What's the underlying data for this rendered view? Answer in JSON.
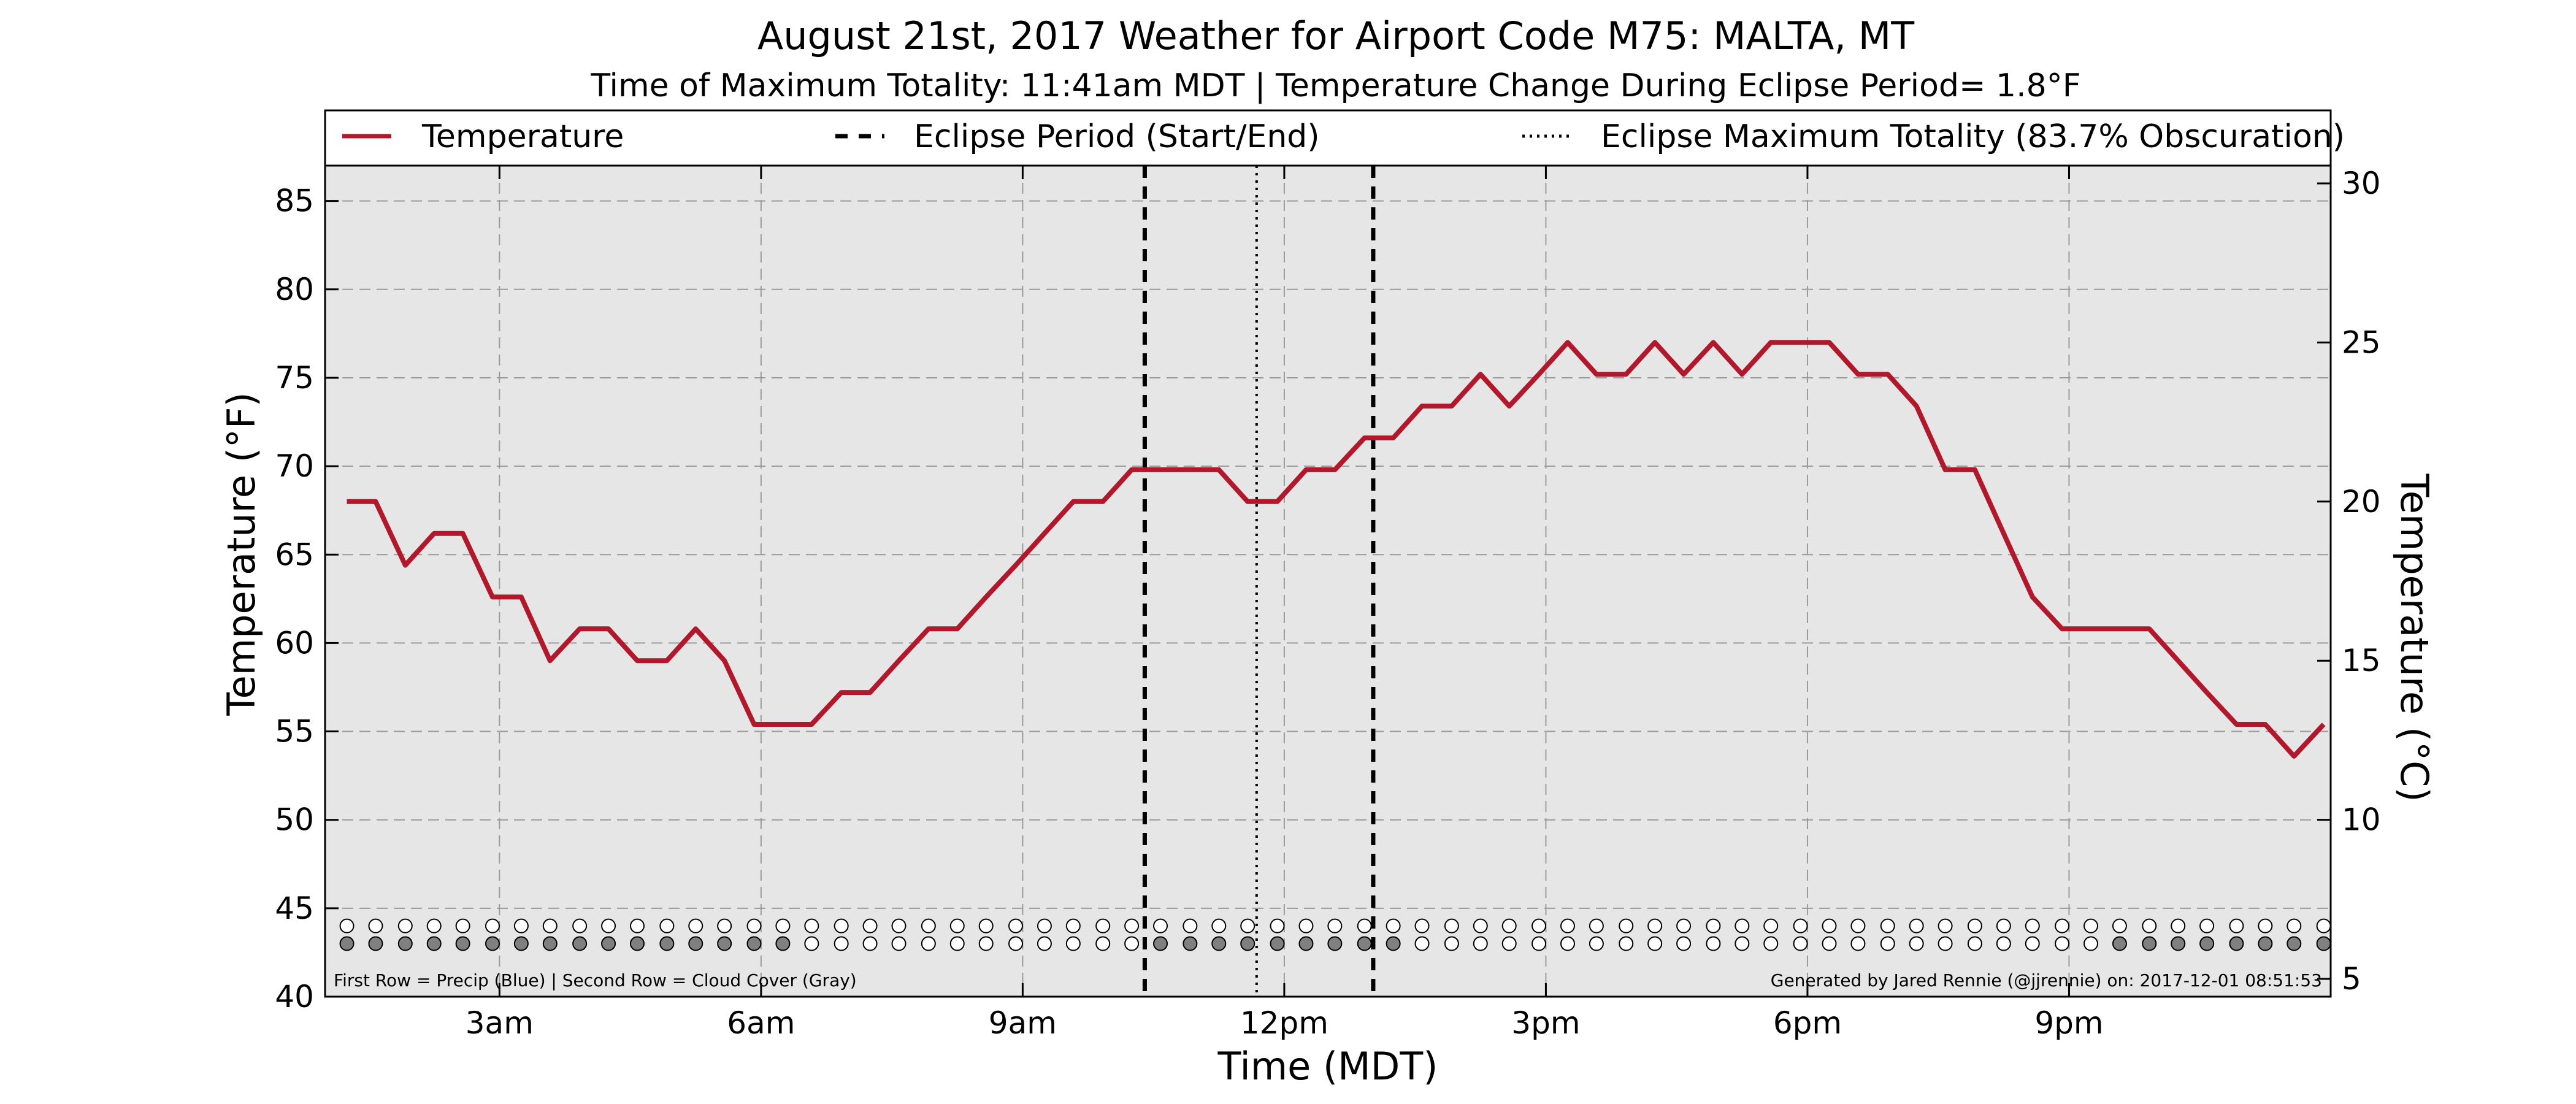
{
  "chart_data": {
    "type": "line",
    "title": "August 21st, 2017 Weather for Airport Code M75: MALTA, MT",
    "subtitle": "Time of Maximum Totality: 11:41am MDT | Temperature Change During Eclipse Period= 1.8°F",
    "xlabel": "Time (MDT)",
    "ylabel": "Temperature (°F)",
    "ylabel_right": "Temperature (°C)",
    "x_unit": "hours after midnight (MDT)",
    "xlim": [
      1.0,
      24.0
    ],
    "ylim": [
      40,
      87
    ],
    "ylim_right": [
      4.44,
      30.56
    ],
    "x_ticks": [
      {
        "x": 3,
        "label": "3am"
      },
      {
        "x": 6,
        "label": "6am"
      },
      {
        "x": 9,
        "label": "9am"
      },
      {
        "x": 12,
        "label": "12pm"
      },
      {
        "x": 15,
        "label": "3pm"
      },
      {
        "x": 18,
        "label": "6pm"
      },
      {
        "x": 21,
        "label": "9pm"
      }
    ],
    "y_ticks": [
      40,
      45,
      50,
      55,
      60,
      65,
      70,
      75,
      80,
      85
    ],
    "y_ticks_right": [
      5,
      10,
      15,
      20,
      25,
      30
    ],
    "grid": true,
    "legend_position": "top",
    "background": "#e6e6e6",
    "series": [
      {
        "name": "Temperature",
        "color": "#b2182b",
        "x": [
          1.25,
          1.58,
          1.92,
          2.25,
          2.58,
          2.92,
          3.25,
          3.58,
          3.92,
          4.25,
          4.58,
          4.92,
          5.25,
          5.58,
          5.92,
          6.25,
          6.58,
          6.92,
          7.25,
          7.58,
          7.92,
          8.25,
          8.58,
          8.92,
          9.25,
          9.58,
          9.92,
          10.25,
          10.58,
          10.92,
          11.25,
          11.58,
          11.92,
          12.25,
          12.58,
          12.92,
          13.25,
          13.58,
          13.92,
          14.25,
          14.58,
          14.92,
          15.25,
          15.58,
          15.92,
          16.25,
          16.58,
          16.92,
          17.25,
          17.58,
          17.92,
          18.25,
          18.58,
          18.92,
          19.25,
          19.58,
          19.92,
          20.25,
          20.58,
          20.92,
          21.25,
          21.58,
          21.92,
          22.25,
          22.58,
          22.92,
          23.25,
          23.58,
          23.92
        ],
        "values": [
          68.0,
          68.0,
          64.4,
          66.2,
          66.2,
          62.6,
          62.6,
          59.0,
          60.8,
          60.8,
          59.0,
          59.0,
          60.8,
          59.0,
          55.4,
          55.4,
          55.4,
          57.2,
          57.2,
          59.0,
          60.8,
          60.8,
          62.6,
          64.4,
          66.2,
          68.0,
          68.0,
          69.8,
          69.8,
          69.8,
          69.8,
          68.0,
          68.0,
          69.8,
          69.8,
          71.6,
          71.6,
          73.4,
          73.4,
          75.2,
          73.4,
          75.2,
          77.0,
          75.2,
          75.2,
          77.0,
          75.2,
          77.0,
          75.2,
          77.0,
          77.0,
          77.0,
          75.2,
          75.2,
          73.4,
          69.8,
          69.8,
          66.2,
          62.6,
          60.8,
          60.8,
          60.8,
          60.8,
          59.0,
          57.2,
          55.4,
          55.4,
          53.6,
          55.4
        ]
      }
    ],
    "eclipse": {
      "start_x": 10.4,
      "end_x": 13.02,
      "max_x": 11.683,
      "start_end_label": "Eclipse Period (Start/End)",
      "max_label": "Eclipse Maximum Totality (83.7% Obscuration)"
    },
    "indicator_rows": {
      "row1_y": 44.0,
      "row2_y": 43.0,
      "x": [
        1.25,
        1.58,
        1.92,
        2.25,
        2.58,
        2.92,
        3.25,
        3.58,
        3.92,
        4.25,
        4.58,
        4.92,
        5.25,
        5.58,
        5.92,
        6.25,
        6.58,
        6.92,
        7.25,
        7.58,
        7.92,
        8.25,
        8.58,
        8.92,
        9.25,
        9.58,
        9.92,
        10.25,
        10.58,
        10.92,
        11.25,
        11.58,
        11.92,
        12.25,
        12.58,
        12.92,
        13.25,
        13.58,
        13.92,
        14.25,
        14.58,
        14.92,
        15.25,
        15.58,
        15.92,
        16.25,
        16.58,
        16.92,
        17.25,
        17.58,
        17.92,
        18.25,
        18.58,
        18.92,
        19.25,
        19.58,
        19.92,
        20.25,
        20.58,
        20.92,
        21.25,
        21.58,
        21.92,
        22.25,
        22.58,
        22.92,
        23.25,
        23.58,
        23.92
      ],
      "precip_color": "#ffffff",
      "cloud_filled_color": "#808080",
      "cloud_clear_color": "#ffffff",
      "cloud_filled": [
        1,
        1,
        1,
        1,
        1,
        1,
        1,
        1,
        1,
        1,
        1,
        1,
        1,
        1,
        1,
        1,
        0,
        0,
        0,
        0,
        0,
        0,
        0,
        0,
        0,
        0,
        0,
        0,
        1,
        1,
        1,
        1,
        1,
        1,
        1,
        1,
        1,
        0,
        0,
        0,
        0,
        0,
        0,
        0,
        0,
        0,
        0,
        0,
        0,
        0,
        0,
        0,
        0,
        0,
        0,
        0,
        0,
        0,
        0,
        0,
        0,
        1,
        1,
        1,
        1,
        1,
        1,
        1,
        1
      ]
    }
  },
  "footnote_left": "First Row = Precip (Blue) | Second Row = Cloud Cover (Gray)",
  "footnote_right": "Generated by Jared Rennie (@jjrennie) on: 2017-12-01 08:51:53"
}
